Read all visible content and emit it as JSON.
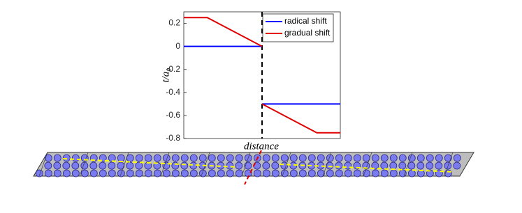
{
  "chart_data": {
    "type": "line",
    "ylabel": "t/a₀",
    "xlabel": "distance",
    "x": [
      0,
      0.15,
      0.5,
      0.5,
      0.5,
      0.85,
      1
    ],
    "xlim": [
      0,
      1
    ],
    "ylim": [
      -0.8,
      0.3
    ],
    "yticks": [
      0.2,
      0,
      -0.2,
      -0.4,
      -0.6,
      -0.8
    ],
    "vline": 0.5,
    "legend": "upper right",
    "series": [
      {
        "name": "radical shift",
        "color": "#0000ff",
        "values": [
          0,
          0,
          0,
          null,
          -0.5,
          -0.5,
          -0.5
        ]
      },
      {
        "name": "gradual shift",
        "color": "#e00000",
        "values": [
          0.25,
          0.25,
          0,
          null,
          -0.5,
          -0.75,
          -0.75
        ]
      }
    ]
  }
}
